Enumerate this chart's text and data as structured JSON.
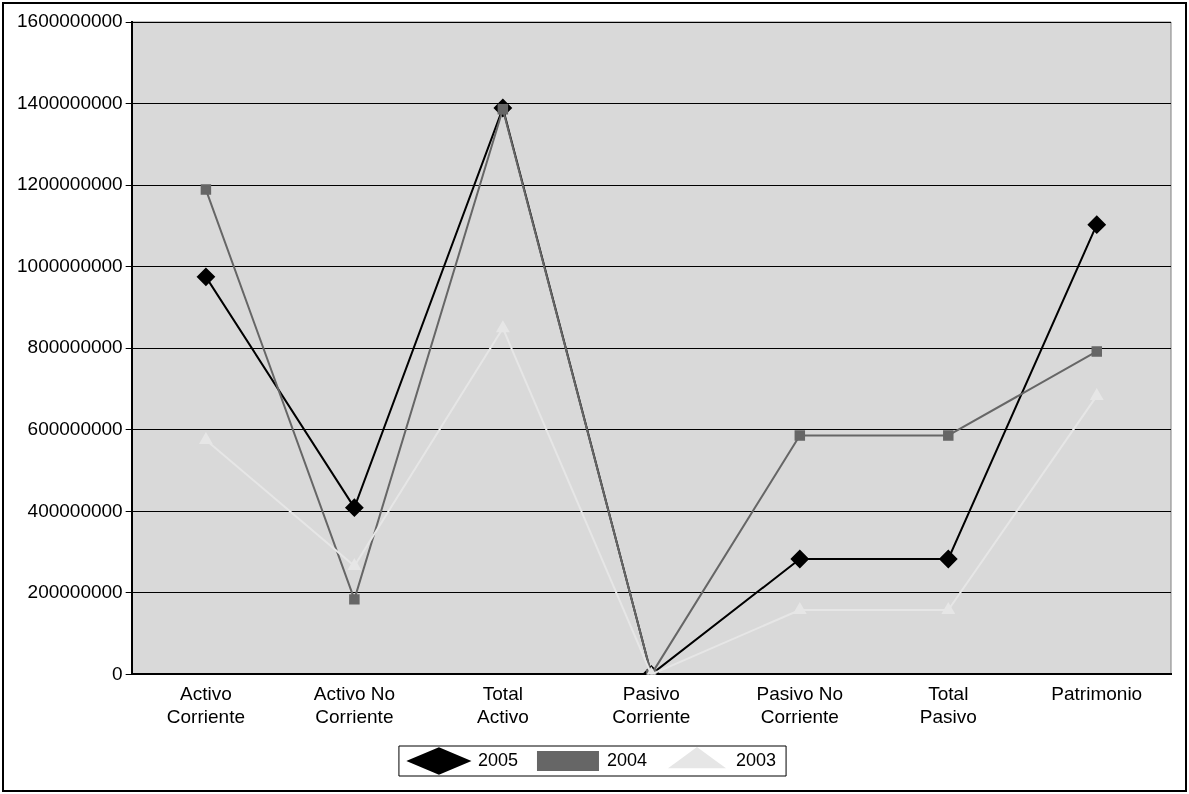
{
  "chart_data": {
    "type": "line",
    "categories": [
      "Activo Corriente",
      "Activo No Corriente",
      "Total Activo",
      "Pasivo Corriente",
      "Pasivo No Corriente",
      "Total Pasivo",
      "Patrimonio"
    ],
    "series": [
      {
        "name": "2005",
        "color": "#000000",
        "marker": "diamond",
        "values": [
          975000000,
          409000000,
          1389000000,
          0,
          283000000,
          283000000,
          1103000000
        ]
      },
      {
        "name": "2004",
        "color": "#666666",
        "marker": "square",
        "values": [
          1189000000,
          184000000,
          1386000000,
          0,
          586000000,
          586000000,
          792000000
        ]
      },
      {
        "name": "2003",
        "color": "#e6e6e6",
        "marker": "triangle",
        "values": [
          575000000,
          266000000,
          849000000,
          0,
          158000000,
          158000000,
          683000000
        ]
      }
    ],
    "ylim": [
      0,
      1600000000
    ],
    "yticks": [
      0,
      200000000,
      400000000,
      600000000,
      800000000,
      1000000000,
      1200000000,
      1400000000,
      1600000000
    ],
    "grid": "y",
    "legend": "bottom",
    "line_style": "solid"
  }
}
